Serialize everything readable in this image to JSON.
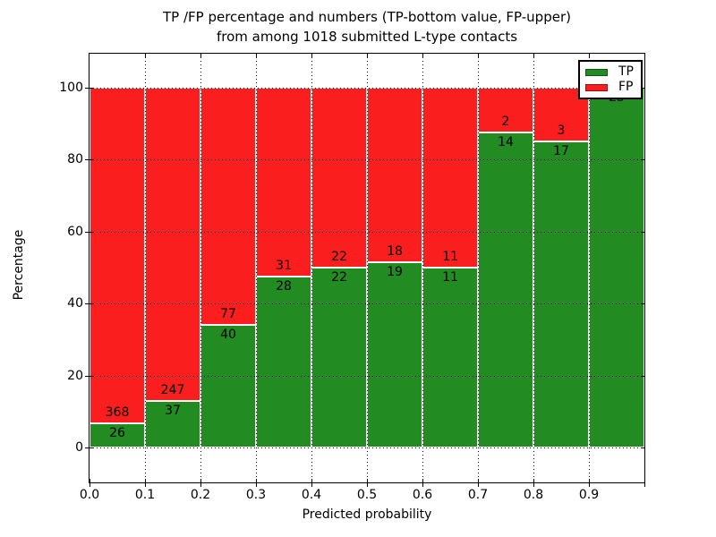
{
  "figure": {
    "title_line1": "TP /FP percentage and numbers (TP-bottom value, FP-upper)",
    "title_line2": "from among 1018 submitted L-type contacts"
  },
  "chart_data": {
    "type": "bar",
    "stacked": true,
    "orientation": "vertical",
    "title": "TP /FP percentage and numbers (TP-bottom value, FP-upper)\nfrom among 1018 submitted L-type contacts",
    "xlabel": "Predicted probability",
    "ylabel": "Percentage",
    "xlim": [
      0.0,
      1.0
    ],
    "ylim": [
      -9.5,
      109.5
    ],
    "bin_width": 0.1,
    "bin_starts": [
      0.0,
      0.1,
      0.2,
      0.3,
      0.4,
      0.5,
      0.6,
      0.7,
      0.8,
      0.9
    ],
    "x_tick_labels": [
      "0.0",
      "0.1",
      "0.2",
      "0.3",
      "0.4",
      "0.5",
      "0.6",
      "0.7",
      "0.8",
      "0.9"
    ],
    "y_ticks": [
      0,
      20,
      40,
      60,
      80,
      100
    ],
    "y_tick_labels": [
      "0",
      "20",
      "40",
      "60",
      "80",
      "100"
    ],
    "grid": "dotted",
    "total_contacts": 1018,
    "series": [
      {
        "name": "TP",
        "color": "#228b22",
        "counts": [
          26,
          37,
          40,
          28,
          22,
          19,
          11,
          14,
          17,
          25
        ],
        "percentages": [
          6.6,
          13.0,
          34.2,
          47.5,
          50.0,
          51.4,
          50.0,
          87.5,
          85.0,
          100.0
        ]
      },
      {
        "name": "FP",
        "color": "#fb1e1e",
        "counts": [
          368,
          247,
          77,
          31,
          22,
          18,
          11,
          2,
          3,
          0
        ],
        "percentages": [
          93.4,
          87.0,
          65.8,
          52.5,
          50.0,
          48.6,
          50.0,
          12.5,
          15.0,
          0.0
        ]
      }
    ],
    "legend": {
      "position": "upper right",
      "entries": [
        {
          "label": "TP",
          "color": "#228b22"
        },
        {
          "label": "FP",
          "color": "#fb1e1e"
        }
      ]
    }
  }
}
